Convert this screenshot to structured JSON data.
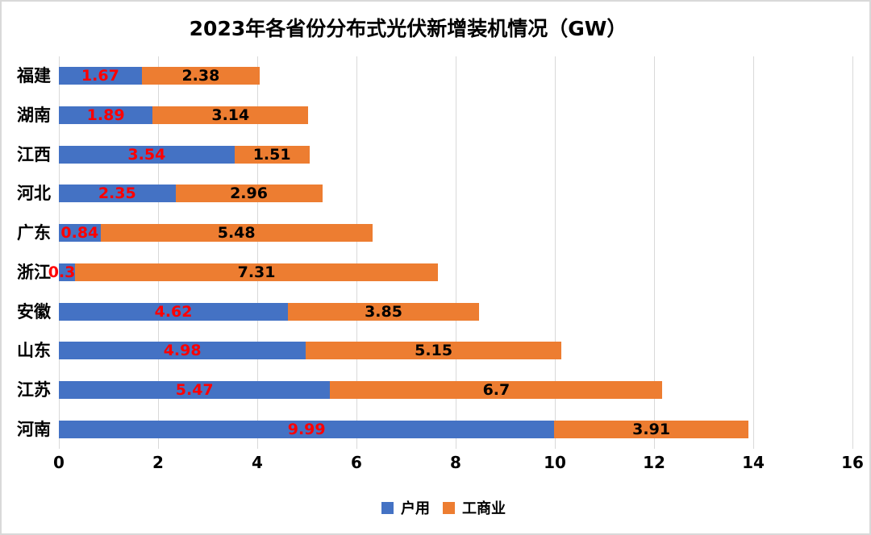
{
  "title": "2023年各省份分布式光伏新增装机情况（GW）",
  "chart_data": {
    "type": "bar",
    "orientation": "horizontal",
    "stacked": true,
    "title": "2023年各省份分布式光伏新增装机情况（GW）",
    "categories": [
      "福建",
      "湖南",
      "江西",
      "河北",
      "广东",
      "浙江",
      "安徽",
      "山东",
      "江苏",
      "河南"
    ],
    "series": [
      {
        "id": "residential",
        "name": "户用",
        "color": "#4472C4",
        "label_color": "#FF0000",
        "values": [
          1.67,
          1.89,
          3.54,
          2.35,
          0.84,
          0.33,
          4.62,
          4.98,
          5.47,
          9.99
        ]
      },
      {
        "id": "commercial-industrial",
        "name": "工商业",
        "color": "#ED7D31",
        "label_color": "#000000",
        "values": [
          2.38,
          3.14,
          1.51,
          2.96,
          5.48,
          7.31,
          3.85,
          5.15,
          6.7,
          3.91
        ]
      }
    ],
    "xlabel": "",
    "ylabel": "",
    "xlim": [
      0,
      16
    ],
    "x_ticks": [
      0,
      2,
      4,
      6,
      8,
      10,
      12,
      14,
      16
    ],
    "grid": true,
    "legend_position": "bottom"
  },
  "colors": {
    "background": "#FFFFFF",
    "gridline": "#D9D9D9",
    "frame_border": "#D9D9D9"
  }
}
